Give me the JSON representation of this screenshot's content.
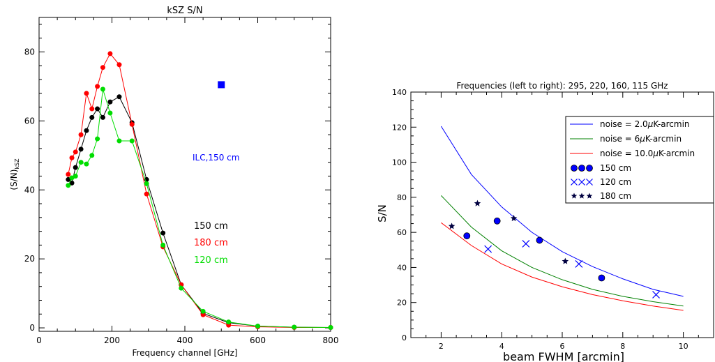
{
  "chart_data": [
    {
      "type": "line",
      "title": "kSZ S/N",
      "xlabel": "Frequency channel [GHz]",
      "ylabel": "(S/N)",
      "ylabel_sub": "kSZ",
      "xlim": [
        0,
        800
      ],
      "ylim": [
        -1,
        90
      ],
      "xticks": [
        "0",
        "200",
        "400",
        "600",
        "800"
      ],
      "yticks": [
        "0",
        "20",
        "40",
        "60",
        "80"
      ],
      "series": [
        {
          "name": "150 cm",
          "color": "#000000",
          "x": [
            80,
            90,
            100,
            115,
            130,
            145,
            160,
            175,
            195,
            220,
            255,
            295,
            340,
            390,
            450,
            520,
            600,
            700,
            800
          ],
          "y": [
            43.0,
            42.0,
            46.5,
            51.8,
            57.2,
            61.0,
            63.5,
            61.0,
            65.5,
            67.0,
            59.5,
            43.0,
            27.5,
            12.5,
            4.2,
            1.5,
            0.5,
            0.2,
            0.1
          ]
        },
        {
          "name": "180 cm",
          "color": "#ff0000",
          "x": [
            80,
            90,
            100,
            115,
            130,
            145,
            160,
            175,
            195,
            220,
            255,
            295,
            340,
            390,
            450,
            520,
            600,
            700,
            800
          ],
          "y": [
            44.5,
            49.3,
            51.0,
            56.0,
            68.0,
            63.5,
            70.0,
            75.5,
            79.5,
            76.3,
            59.0,
            38.8,
            23.5,
            12.5,
            3.8,
            0.8,
            0.3,
            0.1,
            0.1
          ]
        },
        {
          "name": "120 cm",
          "color": "#00dd00",
          "x": [
            80,
            90,
            100,
            115,
            130,
            145,
            160,
            175,
            195,
            220,
            255,
            295,
            340,
            390,
            450,
            520,
            600,
            700,
            800
          ],
          "y": [
            41.3,
            43.5,
            44.0,
            48.0,
            47.5,
            50.0,
            54.8,
            69.2,
            62.3,
            54.2,
            54.2,
            41.8,
            24.0,
            11.5,
            4.8,
            1.7,
            0.5,
            0.2,
            0.1
          ]
        }
      ],
      "ilc_point": {
        "label": "ILC,150 cm",
        "x": 500,
        "y": 70.5,
        "color": "#0000ff"
      }
    },
    {
      "type": "line",
      "title": "Frequencies (left to right): 295, 220, 160, 115 GHz",
      "xlabel": "beam FWHM [arcmin]",
      "ylabel": "S/N",
      "xlim": [
        1,
        11
      ],
      "ylim": [
        0,
        140
      ],
      "xticks": [
        "2",
        "4",
        "6",
        "8",
        "10"
      ],
      "yticks": [
        "0",
        "20",
        "40",
        "60",
        "80",
        "100",
        "120",
        "140"
      ],
      "legend_placement": "top-right",
      "curves": [
        {
          "name_prefix": "noise = 2.0",
          "name_mu": "μ",
          "name_suffix": "K-arcmin",
          "color": "#0000ff",
          "x": [
            2,
            3,
            4,
            5,
            6,
            7,
            8,
            9,
            10
          ],
          "y": [
            120.5,
            93.0,
            74.5,
            60.0,
            49.0,
            40.5,
            33.5,
            27.5,
            23.5
          ]
        },
        {
          "name_prefix": "noise = 6",
          "name_mu": "μ",
          "name_suffix": "K-arcmin",
          "color": "#008000",
          "x": [
            2,
            3,
            4,
            5,
            6,
            7,
            8,
            9,
            10
          ],
          "y": [
            81.0,
            63.0,
            49.5,
            40.0,
            33.0,
            27.5,
            23.5,
            20.5,
            18.0
          ]
        },
        {
          "name_prefix": "noise = 10.0",
          "name_mu": "μ",
          "name_suffix": "K-arcmin",
          "color": "#ff0000",
          "x": [
            2,
            3,
            4,
            5,
            6,
            7,
            8,
            9,
            10
          ],
          "y": [
            65.5,
            52.5,
            42.0,
            34.5,
            29.0,
            24.5,
            21.0,
            18.0,
            15.5
          ]
        }
      ],
      "points": [
        {
          "name": "150 cm",
          "marker": "circle",
          "color": "#0000ff",
          "x": [
            2.85,
            3.85,
            5.25,
            7.3
          ],
          "y": [
            58.0,
            66.5,
            55.5,
            34.0
          ]
        },
        {
          "name": "120 cm",
          "marker": "x",
          "color": "#0000ff",
          "x": [
            3.55,
            4.8,
            6.55,
            9.1
          ],
          "y": [
            50.5,
            53.5,
            42.0,
            24.5
          ]
        },
        {
          "name": "180 cm",
          "marker": "star",
          "color": "#000040",
          "x": [
            2.35,
            3.2,
            4.4,
            6.1
          ],
          "y": [
            63.5,
            76.5,
            68.0,
            43.5
          ]
        }
      ]
    }
  ]
}
